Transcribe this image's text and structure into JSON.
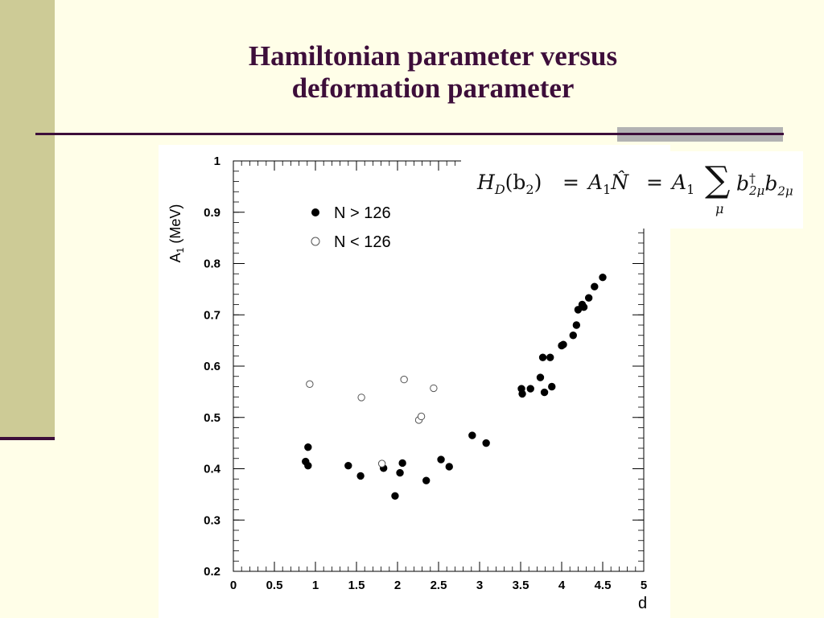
{
  "slide": {
    "title_line_1": "Hamiltonian parameter versus",
    "title_line_2": "deformation parameter",
    "title_color": "#3d0e3a",
    "background_color": "#fffee8",
    "sidebar_color": "#cdcb96"
  },
  "equation": {
    "lhs": "H",
    "lhs_sub": "D",
    "lhs_arg": "(b",
    "lhs_arg_sub": "2",
    "lhs_arg_close": ")",
    "eq1": "=",
    "term1": "A",
    "term1_sub": "1",
    "term1_op": "N̂",
    "eq2": "=",
    "term2": "A",
    "term2_sub": "1",
    "sum_symbol": "∑",
    "sum_index": "μ",
    "op1": "b",
    "op1_sup": "†",
    "op1_sub": "2μ",
    "op2": "b",
    "op2_sub": "2μ"
  },
  "chart_data": {
    "type": "scatter",
    "xlabel": "d",
    "ylabel_main": "A",
    "ylabel_sub": "1",
    "ylabel_unit": " (MeV)",
    "xlim": [
      0,
      5
    ],
    "ylim": [
      0.2,
      1
    ],
    "x_ticks": [
      "0",
      "0.5",
      "1",
      "1.5",
      "2",
      "2.5",
      "3",
      "3.5",
      "4",
      "4.5",
      "5"
    ],
    "y_ticks": [
      "0.2",
      "0.3",
      "0.4",
      "0.5",
      "0.6",
      "0.7",
      "0.8",
      "0.9",
      "1"
    ],
    "grid": false,
    "legend_position": "top-left",
    "series": [
      {
        "name": "N > 126",
        "marker": "filled-circle",
        "points": [
          [
            0.88,
            0.414
          ],
          [
            0.91,
            0.442
          ],
          [
            0.91,
            0.406
          ],
          [
            1.4,
            0.406
          ],
          [
            1.55,
            0.386
          ],
          [
            1.83,
            0.401
          ],
          [
            1.97,
            0.347
          ],
          [
            2.03,
            0.392
          ],
          [
            2.06,
            0.411
          ],
          [
            2.35,
            0.377
          ],
          [
            2.53,
            0.418
          ],
          [
            2.63,
            0.404
          ],
          [
            2.91,
            0.465
          ],
          [
            3.08,
            0.45
          ],
          [
            3.51,
            0.556
          ],
          [
            3.52,
            0.546
          ],
          [
            3.62,
            0.556
          ],
          [
            3.74,
            0.578
          ],
          [
            3.77,
            0.617
          ],
          [
            3.79,
            0.549
          ],
          [
            3.86,
            0.617
          ],
          [
            3.88,
            0.56
          ],
          [
            4.0,
            0.64
          ],
          [
            4.02,
            0.642
          ],
          [
            4.14,
            0.66
          ],
          [
            4.18,
            0.68
          ],
          [
            4.2,
            0.71
          ],
          [
            4.25,
            0.72
          ],
          [
            4.27,
            0.715
          ],
          [
            4.33,
            0.733
          ],
          [
            4.4,
            0.755
          ],
          [
            4.5,
            0.773
          ]
        ]
      },
      {
        "name": "N < 126",
        "marker": "open-circle",
        "points": [
          [
            0.93,
            0.565
          ],
          [
            1.56,
            0.539
          ],
          [
            1.81,
            0.41
          ],
          [
            2.08,
            0.574
          ],
          [
            2.26,
            0.495
          ],
          [
            2.29,
            0.502
          ],
          [
            2.44,
            0.557
          ]
        ]
      }
    ]
  }
}
